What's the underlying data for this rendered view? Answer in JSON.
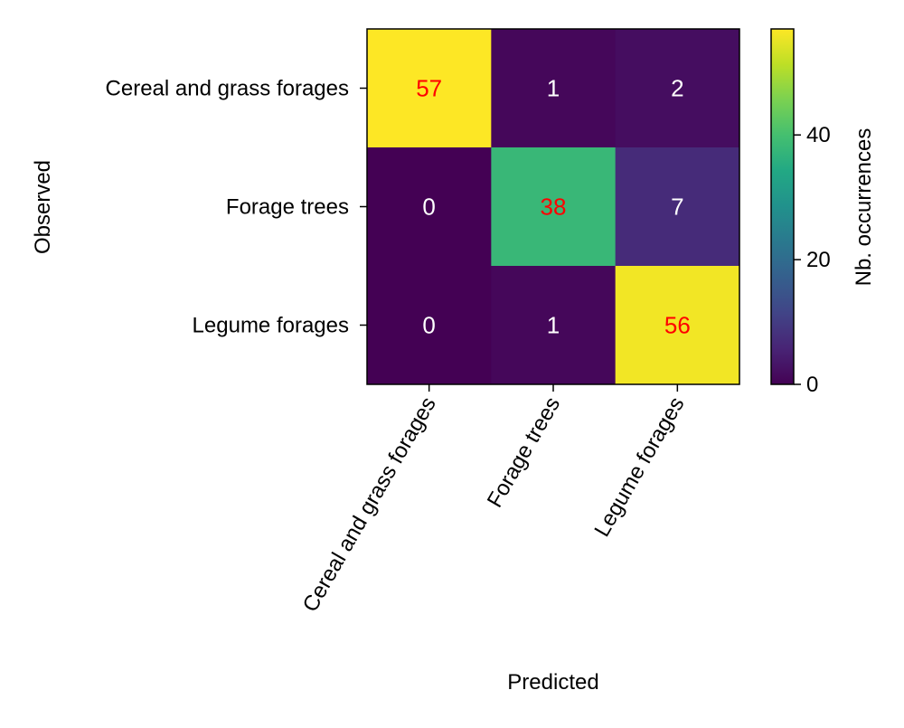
{
  "chart_data": {
    "type": "heatmap",
    "title": "",
    "xlabel": "Predicted",
    "ylabel": "Observed",
    "x_categories": [
      "Cereal and grass forages",
      "Forage trees",
      "Legume forages"
    ],
    "y_categories": [
      "Cereal and grass forages",
      "Forage trees",
      "Legume forages"
    ],
    "values": [
      [
        57,
        1,
        2
      ],
      [
        0,
        38,
        7
      ],
      [
        0,
        1,
        56
      ]
    ],
    "colorbar": {
      "label": "Nb. occurrences",
      "range": [
        0,
        57
      ],
      "ticks": [
        0,
        20,
        40
      ],
      "colormap": "viridis"
    },
    "colors": {
      "diagonal_label": "#ff0000",
      "offdiagonal_label": "#ffffff"
    }
  }
}
